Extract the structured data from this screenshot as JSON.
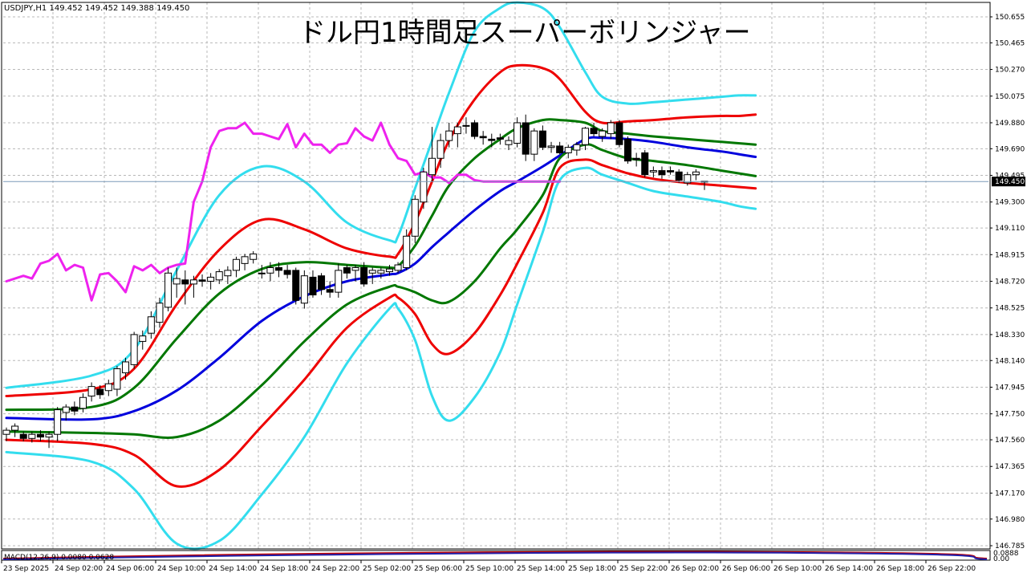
{
  "chart_data": {
    "type": "candlestick",
    "symbol_header": "USDJPY,H1  149.452 149.452 149.388 149.450",
    "title": "ドル円1時間足スーパーボリンジャー",
    "current_price_label": "149.450",
    "current_price": 149.45,
    "ylim": [
      146.785,
      150.75
    ],
    "y_ticks": [
      "150.655",
      "150.465",
      "150.270",
      "150.075",
      "149.880",
      "149.690",
      "149.495",
      "149.300",
      "149.110",
      "148.915",
      "148.720",
      "148.525",
      "148.330",
      "148.140",
      "147.945",
      "147.750",
      "147.560",
      "147.365",
      "147.170",
      "146.980",
      "146.785"
    ],
    "x_ticks": [
      "23 Sep 2025",
      "24 Sep 02:00",
      "24 Sep 06:00",
      "24 Sep 10:00",
      "24 Sep 14:00",
      "24 Sep 18:00",
      "24 Sep 22:00",
      "25 Sep 02:00",
      "25 Sep 06:00",
      "25 Sep 10:00",
      "25 Sep 14:00",
      "25 Sep 18:00",
      "25 Sep 22:00",
      "26 Sep 02:00",
      "26 Sep 06:00",
      "26 Sep 10:00",
      "26 Sep 14:00",
      "26 Sep 18:00",
      "26 Sep 22:00"
    ],
    "grid": true,
    "macd": {
      "label": "MACD(12,26,9) 0.0080 0.0628",
      "right_labels": [
        "0.0888",
        "0.00"
      ]
    },
    "colors": {
      "mid": "#0000dd",
      "band1": "#007700",
      "band2": "#ee0000",
      "band3": "#33ddee",
      "lagging": "#ee22ee",
      "candle_up": "#ffffff",
      "candle_down": "#000000",
      "price_line": "#7a9ab8"
    },
    "candles": [
      {
        "o": 147.6,
        "h": 147.65,
        "l": 147.55,
        "c": 147.63
      },
      {
        "o": 147.63,
        "h": 147.68,
        "l": 147.58,
        "c": 147.66
      },
      {
        "o": 147.6,
        "h": 147.62,
        "l": 147.55,
        "c": 147.57
      },
      {
        "o": 147.57,
        "h": 147.62,
        "l": 147.54,
        "c": 147.6
      },
      {
        "o": 147.6,
        "h": 147.63,
        "l": 147.55,
        "c": 147.58
      },
      {
        "o": 147.58,
        "h": 147.62,
        "l": 147.5,
        "c": 147.6
      },
      {
        "o": 147.6,
        "h": 147.8,
        "l": 147.55,
        "c": 147.78
      },
      {
        "o": 147.76,
        "h": 147.82,
        "l": 147.7,
        "c": 147.8
      },
      {
        "o": 147.8,
        "h": 147.84,
        "l": 147.74,
        "c": 147.77
      },
      {
        "o": 147.79,
        "h": 147.9,
        "l": 147.76,
        "c": 147.87
      },
      {
        "o": 147.88,
        "h": 147.98,
        "l": 147.84,
        "c": 147.95
      },
      {
        "o": 147.93,
        "h": 147.96,
        "l": 147.86,
        "c": 147.89
      },
      {
        "o": 147.92,
        "h": 148.0,
        "l": 147.88,
        "c": 147.97
      },
      {
        "o": 147.93,
        "h": 148.1,
        "l": 147.88,
        "c": 148.08
      },
      {
        "o": 148.05,
        "h": 148.16,
        "l": 148.0,
        "c": 148.13
      },
      {
        "o": 148.11,
        "h": 148.35,
        "l": 148.08,
        "c": 148.33
      },
      {
        "o": 148.28,
        "h": 148.36,
        "l": 148.22,
        "c": 148.32
      },
      {
        "o": 148.34,
        "h": 148.5,
        "l": 148.3,
        "c": 148.46
      },
      {
        "o": 148.42,
        "h": 148.6,
        "l": 148.38,
        "c": 148.56
      },
      {
        "o": 148.53,
        "h": 148.82,
        "l": 148.5,
        "c": 148.78
      },
      {
        "o": 148.7,
        "h": 148.82,
        "l": 148.6,
        "c": 148.74
      },
      {
        "o": 148.73,
        "h": 148.8,
        "l": 148.55,
        "c": 148.7
      },
      {
        "o": 148.7,
        "h": 148.76,
        "l": 148.6,
        "c": 148.73
      },
      {
        "o": 148.73,
        "h": 148.77,
        "l": 148.68,
        "c": 148.72
      },
      {
        "o": 148.72,
        "h": 148.78,
        "l": 148.66,
        "c": 148.75
      },
      {
        "o": 148.73,
        "h": 148.81,
        "l": 148.7,
        "c": 148.79
      },
      {
        "o": 148.76,
        "h": 148.83,
        "l": 148.7,
        "c": 148.8
      },
      {
        "o": 148.8,
        "h": 148.9,
        "l": 148.75,
        "c": 148.88
      },
      {
        "o": 148.85,
        "h": 148.92,
        "l": 148.8,
        "c": 148.9
      },
      {
        "o": 148.88,
        "h": 148.94,
        "l": 148.85,
        "c": 148.92
      },
      {
        "o": 148.78,
        "h": 148.84,
        "l": 148.74,
        "c": 148.78
      },
      {
        "o": 148.78,
        "h": 148.86,
        "l": 148.72,
        "c": 148.82
      },
      {
        "o": 148.82,
        "h": 148.86,
        "l": 148.75,
        "c": 148.8
      },
      {
        "o": 148.8,
        "h": 148.84,
        "l": 148.74,
        "c": 148.77
      },
      {
        "o": 148.8,
        "h": 148.82,
        "l": 148.55,
        "c": 148.58
      },
      {
        "o": 148.56,
        "h": 148.8,
        "l": 148.52,
        "c": 148.76
      },
      {
        "o": 148.75,
        "h": 148.8,
        "l": 148.6,
        "c": 148.62
      },
      {
        "o": 148.76,
        "h": 148.78,
        "l": 148.62,
        "c": 148.66
      },
      {
        "o": 148.66,
        "h": 148.72,
        "l": 148.6,
        "c": 148.64
      },
      {
        "o": 148.64,
        "h": 148.85,
        "l": 148.6,
        "c": 148.8
      },
      {
        "o": 148.82,
        "h": 148.84,
        "l": 148.74,
        "c": 148.78
      },
      {
        "o": 148.8,
        "h": 148.84,
        "l": 148.72,
        "c": 148.82
      },
      {
        "o": 148.82,
        "h": 148.86,
        "l": 148.68,
        "c": 148.7
      },
      {
        "o": 148.78,
        "h": 148.82,
        "l": 148.7,
        "c": 148.8
      },
      {
        "o": 148.78,
        "h": 148.82,
        "l": 148.74,
        "c": 148.8
      },
      {
        "o": 148.79,
        "h": 148.84,
        "l": 148.76,
        "c": 148.81
      },
      {
        "o": 148.8,
        "h": 148.86,
        "l": 148.78,
        "c": 148.84
      },
      {
        "o": 148.82,
        "h": 149.1,
        "l": 148.8,
        "c": 149.05
      },
      {
        "o": 149.05,
        "h": 149.35,
        "l": 149.0,
        "c": 149.32
      },
      {
        "o": 149.3,
        "h": 149.55,
        "l": 149.25,
        "c": 149.52
      },
      {
        "o": 149.5,
        "h": 149.85,
        "l": 149.45,
        "c": 149.62
      },
      {
        "o": 149.62,
        "h": 149.8,
        "l": 149.55,
        "c": 149.75
      },
      {
        "o": 149.75,
        "h": 149.88,
        "l": 149.7,
        "c": 149.82
      },
      {
        "o": 149.8,
        "h": 149.88,
        "l": 149.7,
        "c": 149.85
      },
      {
        "o": 149.86,
        "h": 149.92,
        "l": 149.8,
        "c": 149.86
      },
      {
        "o": 149.88,
        "h": 149.9,
        "l": 149.76,
        "c": 149.78
      },
      {
        "o": 149.78,
        "h": 149.82,
        "l": 149.72,
        "c": 149.77
      },
      {
        "o": 149.76,
        "h": 149.8,
        "l": 149.7,
        "c": 149.75
      },
      {
        "o": 149.77,
        "h": 149.8,
        "l": 149.72,
        "c": 149.76
      },
      {
        "o": 149.72,
        "h": 149.78,
        "l": 149.68,
        "c": 149.75
      },
      {
        "o": 149.73,
        "h": 149.92,
        "l": 149.7,
        "c": 149.88
      },
      {
        "o": 149.88,
        "h": 149.94,
        "l": 149.6,
        "c": 149.65
      },
      {
        "o": 149.65,
        "h": 149.84,
        "l": 149.6,
        "c": 149.82
      },
      {
        "o": 149.82,
        "h": 149.86,
        "l": 149.68,
        "c": 149.7
      },
      {
        "o": 149.7,
        "h": 149.74,
        "l": 149.66,
        "c": 149.71
      },
      {
        "o": 149.71,
        "h": 149.74,
        "l": 149.65,
        "c": 149.66
      },
      {
        "o": 149.66,
        "h": 149.72,
        "l": 149.62,
        "c": 149.7
      },
      {
        "o": 149.68,
        "h": 149.74,
        "l": 149.64,
        "c": 149.72
      },
      {
        "o": 149.72,
        "h": 149.85,
        "l": 149.68,
        "c": 149.84
      },
      {
        "o": 149.84,
        "h": 149.88,
        "l": 149.78,
        "c": 149.8
      },
      {
        "o": 149.78,
        "h": 149.84,
        "l": 149.74,
        "c": 149.82
      },
      {
        "o": 149.8,
        "h": 149.9,
        "l": 149.76,
        "c": 149.88
      },
      {
        "o": 149.88,
        "h": 149.9,
        "l": 149.7,
        "c": 149.72
      },
      {
        "o": 149.76,
        "h": 149.78,
        "l": 149.58,
        "c": 149.6
      },
      {
        "o": 149.62,
        "h": 149.66,
        "l": 149.56,
        "c": 149.61
      },
      {
        "o": 149.66,
        "h": 149.68,
        "l": 149.48,
        "c": 149.5
      },
      {
        "o": 149.52,
        "h": 149.56,
        "l": 149.48,
        "c": 149.53
      },
      {
        "o": 149.53,
        "h": 149.56,
        "l": 149.47,
        "c": 149.5
      },
      {
        "o": 149.53,
        "h": 149.56,
        "l": 149.5,
        "c": 149.52
      },
      {
        "o": 149.52,
        "h": 149.54,
        "l": 149.44,
        "c": 149.46
      },
      {
        "o": 149.44,
        "h": 149.52,
        "l": 149.42,
        "c": 149.5
      },
      {
        "o": 149.5,
        "h": 149.54,
        "l": 149.46,
        "c": 149.52
      },
      {
        "o": 149.452,
        "h": 149.452,
        "l": 149.388,
        "c": 149.45
      }
    ],
    "series": [
      {
        "name": "",
        "role": "band3_upper",
        "x": [
          0,
          10,
          15,
          20,
          25,
          30,
          35,
          40,
          45,
          46,
          48,
          50,
          52,
          55,
          58,
          60,
          63,
          65,
          68,
          70,
          73,
          76,
          80,
          84,
          86,
          88
        ],
        "y": [
          147.94,
          148.03,
          148.22,
          148.8,
          149.35,
          149.56,
          149.45,
          149.15,
          149.02,
          149.05,
          149.4,
          149.75,
          150.1,
          150.55,
          150.72,
          150.76,
          150.72,
          150.58,
          150.25,
          150.07,
          150.02,
          150.03,
          150.05,
          150.07,
          150.08,
          150.08
        ]
      },
      {
        "name": "",
        "role": "band2_upper",
        "x": [
          0,
          10,
          15,
          20,
          25,
          30,
          35,
          40,
          45,
          46,
          48,
          50,
          52,
          55,
          58,
          60,
          63,
          65,
          68,
          70,
          73,
          76,
          80,
          84,
          86,
          88
        ],
        "y": [
          147.88,
          147.93,
          148.08,
          148.55,
          148.95,
          149.17,
          149.1,
          148.96,
          148.9,
          148.92,
          149.15,
          149.45,
          149.75,
          150.05,
          150.25,
          150.3,
          150.28,
          150.2,
          149.96,
          149.88,
          149.89,
          149.9,
          149.92,
          149.93,
          149.93,
          149.94
        ]
      },
      {
        "name": "",
        "role": "band1_upper",
        "x": [
          0,
          10,
          15,
          20,
          25,
          30,
          35,
          40,
          45,
          46,
          48,
          50,
          52,
          55,
          58,
          60,
          63,
          65,
          68,
          70,
          73,
          76,
          80,
          84,
          86,
          88
        ],
        "y": [
          147.78,
          147.8,
          147.94,
          148.3,
          148.63,
          148.81,
          148.86,
          148.84,
          148.82,
          148.83,
          148.98,
          149.2,
          149.42,
          149.62,
          149.76,
          149.84,
          149.9,
          149.9,
          149.88,
          149.82,
          149.8,
          149.78,
          149.76,
          149.74,
          149.73,
          149.72
        ]
      },
      {
        "name": "",
        "role": "mid",
        "x": [
          0,
          10,
          15,
          20,
          25,
          30,
          35,
          40,
          45,
          46,
          48,
          50,
          52,
          55,
          58,
          60,
          63,
          65,
          68,
          70,
          73,
          76,
          80,
          84,
          86,
          88
        ],
        "y": [
          147.72,
          147.71,
          147.77,
          147.92,
          148.16,
          148.43,
          148.61,
          148.72,
          148.77,
          148.78,
          148.85,
          148.97,
          149.08,
          149.24,
          149.38,
          149.45,
          149.56,
          149.64,
          149.76,
          149.77,
          149.76,
          149.74,
          149.7,
          149.67,
          149.65,
          149.63
        ]
      },
      {
        "name": "",
        "role": "band1_lower",
        "x": [
          0,
          10,
          15,
          20,
          25,
          30,
          35,
          40,
          45,
          46,
          48,
          50,
          52,
          55,
          58,
          60,
          63,
          65,
          68,
          70,
          73,
          76,
          80,
          84,
          86,
          88
        ],
        "y": [
          147.62,
          147.61,
          147.6,
          147.58,
          147.7,
          147.96,
          148.28,
          148.55,
          148.68,
          148.68,
          148.64,
          148.58,
          148.57,
          148.72,
          148.96,
          149.1,
          149.35,
          149.62,
          149.72,
          149.68,
          149.62,
          149.6,
          149.57,
          149.53,
          149.51,
          149.49
        ]
      },
      {
        "name": "",
        "role": "band2_lower",
        "x": [
          0,
          10,
          15,
          20,
          25,
          30,
          35,
          40,
          45,
          46,
          48,
          50,
          52,
          55,
          58,
          60,
          63,
          65,
          68,
          70,
          73,
          76,
          80,
          84,
          86,
          88
        ],
        "y": [
          147.56,
          147.53,
          147.45,
          147.22,
          147.34,
          147.66,
          148.0,
          148.38,
          148.6,
          148.6,
          148.48,
          148.26,
          148.19,
          148.34,
          148.62,
          148.85,
          149.22,
          149.55,
          149.61,
          149.57,
          149.51,
          149.47,
          149.44,
          149.42,
          149.41,
          149.4
        ]
      },
      {
        "name": "",
        "role": "band3_lower",
        "x": [
          0,
          10,
          15,
          20,
          25,
          30,
          35,
          40,
          45,
          46,
          48,
          50,
          52,
          55,
          58,
          60,
          63,
          65,
          68,
          70,
          73,
          76,
          80,
          84,
          86,
          88
        ],
        "y": [
          147.47,
          147.4,
          147.2,
          146.8,
          146.82,
          147.16,
          147.58,
          148.12,
          148.52,
          148.52,
          148.29,
          147.88,
          147.7,
          147.87,
          148.2,
          148.55,
          149.08,
          149.46,
          149.55,
          149.5,
          149.44,
          149.38,
          149.34,
          149.3,
          149.27,
          149.25
        ]
      },
      {
        "name": "",
        "role": "lagging",
        "x": [
          0,
          2,
          3,
          4,
          5,
          6,
          7,
          8,
          9,
          10,
          11,
          12,
          13,
          14,
          15,
          16,
          17,
          18,
          19,
          20,
          21,
          22,
          23,
          24,
          25,
          26,
          27,
          28,
          29,
          30,
          31,
          32,
          33,
          34,
          35,
          36,
          37,
          38,
          39,
          40,
          41,
          42,
          43,
          44,
          45,
          46,
          47,
          48,
          49,
          50,
          51,
          52,
          53,
          54,
          55,
          56,
          57,
          58,
          59,
          60,
          61,
          62,
          63,
          64,
          65
        ],
        "y": [
          148.72,
          148.76,
          148.74,
          148.85,
          148.87,
          148.92,
          148.8,
          148.84,
          148.82,
          148.58,
          148.77,
          148.78,
          148.72,
          148.64,
          148.83,
          148.8,
          148.84,
          148.78,
          148.82,
          148.84,
          148.85,
          149.3,
          149.45,
          149.7,
          149.82,
          149.84,
          149.84,
          149.88,
          149.8,
          149.8,
          149.78,
          149.76,
          149.87,
          149.7,
          149.8,
          149.72,
          149.72,
          149.66,
          149.72,
          149.73,
          149.84,
          149.78,
          149.75,
          149.88,
          149.72,
          149.62,
          149.6,
          149.5,
          149.52,
          149.48,
          149.48,
          149.44,
          149.5,
          149.5,
          149.46,
          149.45,
          149.45,
          149.45,
          149.45,
          149.45,
          149.45,
          149.45,
          149.45,
          149.45,
          149.45
        ]
      }
    ]
  }
}
